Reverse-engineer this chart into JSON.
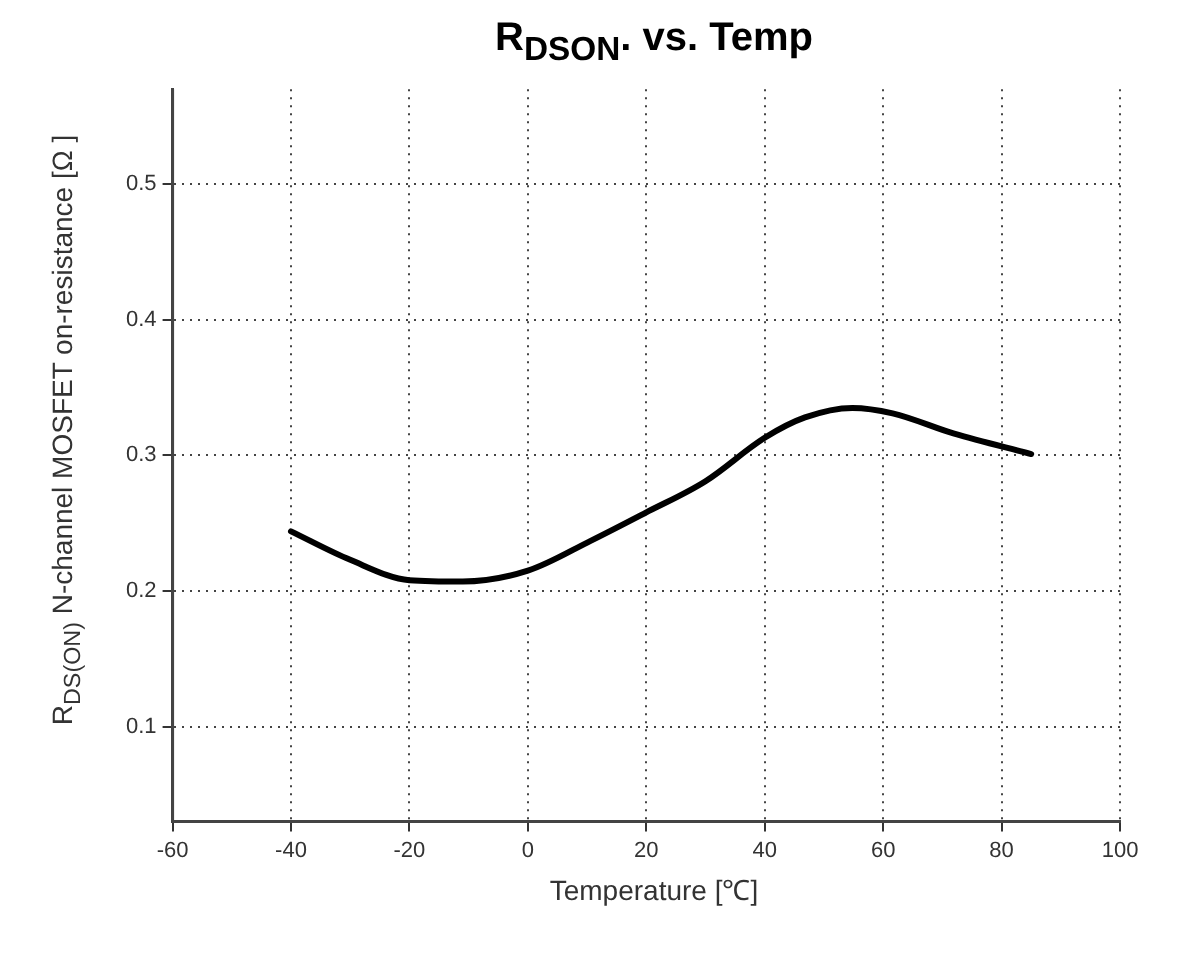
{
  "chart_data": {
    "type": "line",
    "title": "R$_{DSON}$. vs. Temp",
    "xlabel": "Temperature [℃]",
    "ylabel": "R$_{DS(ON)}$ N-channel MOSFET on-resistance [Ω ]",
    "series": [
      {
        "color": "#000000",
        "x": [
          -40,
          -30,
          -20,
          -11,
          0,
          10.6,
          20,
          30,
          40,
          46.8,
          54.8,
          61.6,
          72,
          85
        ],
        "values": [
          0.244,
          0.223,
          0.208,
          0.207,
          0.215,
          0.237,
          0.258,
          0.281,
          0.313,
          0.328,
          0.335,
          0.331,
          0.316,
          0.301
        ]
      }
    ],
    "xlim": [
      -60,
      100
    ],
    "xticks": [
      -60,
      -40,
      -20,
      0,
      20,
      40,
      60,
      80,
      100
    ],
    "ylim": [
      0.03,
      0.57
    ],
    "yticks": [
      0.1,
      0.2,
      0.3,
      0.4,
      0.5
    ],
    "grid": true,
    "legend": false,
    "marker": "none",
    "line_style": "solid"
  }
}
